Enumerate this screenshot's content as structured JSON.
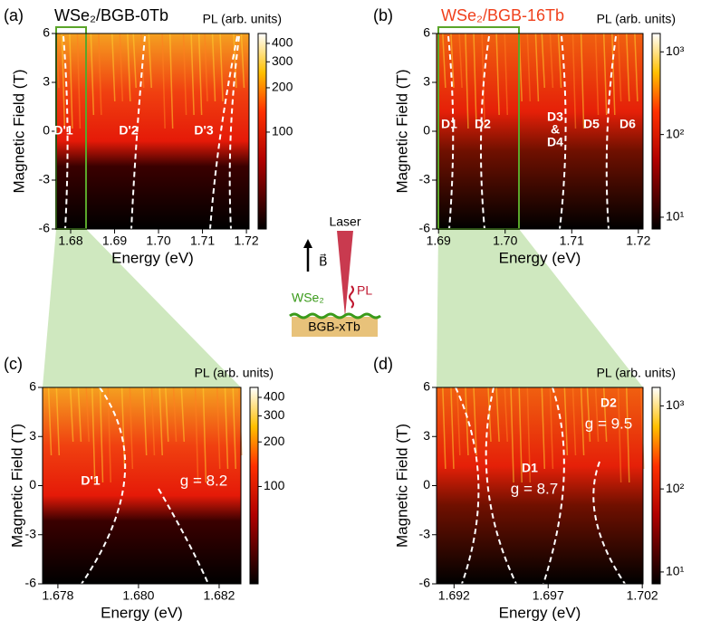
{
  "chart_data": [
    {
      "type": "heatmap",
      "panel": "(a)",
      "title": "WSe₂/BGB-0Tb",
      "title_color": "#000000",
      "xlabel": "Energy (eV)",
      "ylabel": "Magnetic Field (T)",
      "colorbar_label": "PL (arb. units)",
      "xlim": [
        1.6767,
        1.7206
      ],
      "xticks": [
        1.68,
        1.69,
        {
          "value": 1.7,
          "label": "1.70"
        },
        1.71,
        1.72
      ],
      "ylim": [
        -6,
        6
      ],
      "yticks": [
        6,
        3,
        0,
        -3,
        -6
      ],
      "clim": [
        22,
        467
      ],
      "cticks": [
        400,
        300,
        200,
        100
      ],
      "log_colorbar": true,
      "annotations": [
        "D'1",
        "D'2",
        "D'3"
      ]
    },
    {
      "type": "heatmap",
      "panel": "(b)",
      "title": "WSe₂/BGB-16Tb",
      "title_color": "#f0401c",
      "xlabel": "Energy (eV)",
      "ylabel": "Magnetic Field (T)",
      "colorbar_label": "PL (arb. units)",
      "xlim": [
        1.6897,
        1.7207
      ],
      "xticks": [
        1.69,
        {
          "value": 1.7,
          "label": "1.70"
        },
        1.71,
        1.72
      ],
      "ylim": [
        -6,
        6
      ],
      "yticks": [
        6,
        3,
        0,
        -3,
        -6
      ],
      "clim": [
        7.2,
        1668
      ],
      "cticks": [
        {
          "value": 1000,
          "label": "10³"
        },
        {
          "value": 100,
          "label": "10²"
        },
        {
          "value": 10,
          "label": "10¹"
        }
      ],
      "log_colorbar": true,
      "annotations": [
        "D1",
        "D2",
        "D3",
        "&",
        "D4",
        "D5",
        "D6"
      ]
    },
    {
      "type": "heatmap",
      "panel": "(c)",
      "xlabel": "Energy (eV)",
      "ylabel": "Magnetic Field (T)",
      "colorbar_label": "PL (arb. units)",
      "xlim": [
        1.67762,
        1.68254
      ],
      "xticks": [
        1.678,
        {
          "value": 1.68,
          "label": "1.680"
        },
        1.682
      ],
      "ylim": [
        -6,
        6
      ],
      "yticks": [
        6,
        3,
        0,
        -3,
        -6
      ],
      "clim": [
        22,
        467
      ],
      "cticks": [
        400,
        300,
        200,
        100
      ],
      "log_colorbar": true,
      "annotations": [
        "D'1",
        "g = 8.2"
      ]
    },
    {
      "type": "heatmap",
      "panel": "(d)",
      "xlabel": "Energy (eV)",
      "ylabel": "Magnetic Field (T)",
      "colorbar_label": "PL (arb. units)",
      "xlim": [
        1.69107,
        1.70204
      ],
      "xticks": [
        1.692,
        1.697,
        1.702
      ],
      "ylim": [
        -6,
        6
      ],
      "yticks": [
        6,
        3,
        0,
        -3,
        -6
      ],
      "clim": [
        7.2,
        1668
      ],
      "cticks": [
        {
          "value": 1000,
          "label": "10³"
        },
        {
          "value": 100,
          "label": "10²"
        },
        {
          "value": 10,
          "label": "10¹"
        }
      ],
      "log_colorbar": true,
      "annotations": [
        "D2",
        "g = 9.5",
        "D1",
        "g = 8.7"
      ]
    }
  ],
  "schematic": {
    "laser": "Laser",
    "field": "B⃗",
    "pl": "PL",
    "layer": "WSe₂",
    "substrate": "BGB-xTb"
  }
}
